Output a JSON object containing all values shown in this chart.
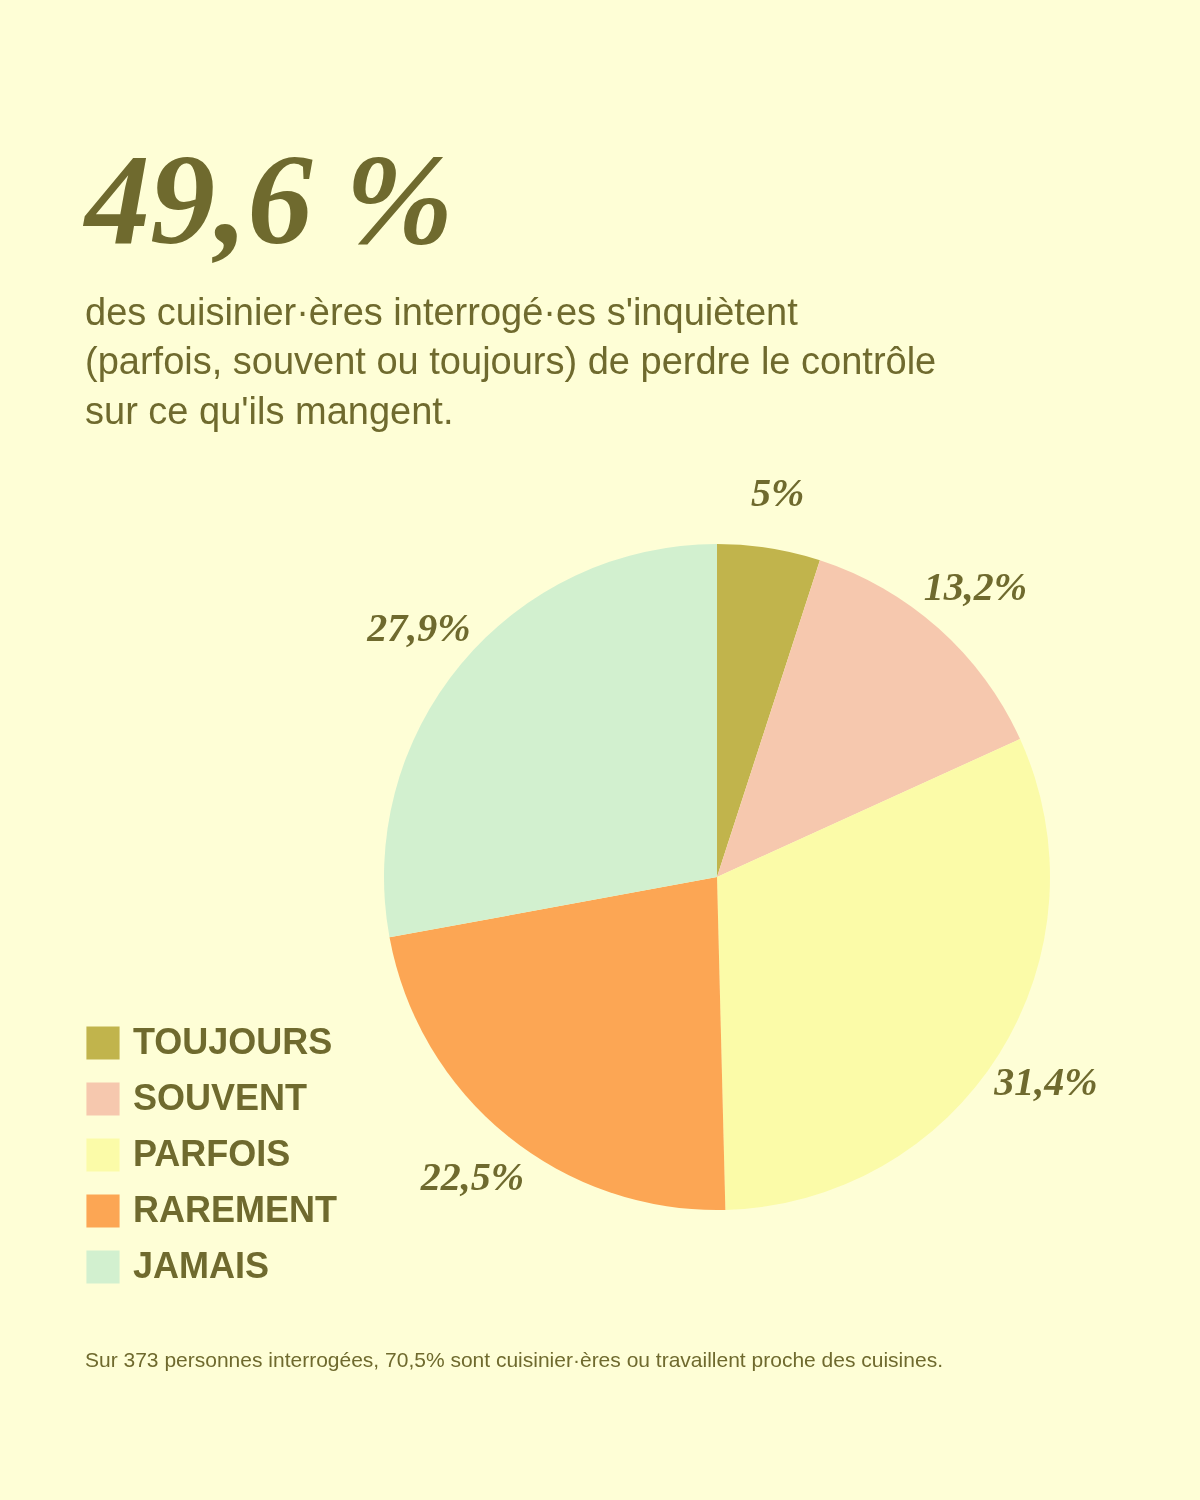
{
  "chart_data": {
    "type": "pie",
    "title": "49,6 %",
    "subtitle": "des cuisinier·ères interrogé·es s'inquiètent\n(parfois, souvent ou toujours) de perdre le contrôle\nsur ce qu'ils mangent.",
    "categories": [
      "TOUJOURS",
      "SOUVENT",
      "PARFOIS",
      "RAREMENT",
      "JAMAIS"
    ],
    "values": [
      5,
      13.2,
      31.4,
      22.5,
      27.9
    ],
    "colors": [
      "#c1b44c",
      "#f6c8ae",
      "#fbfba8",
      "#fca654",
      "#d2f0cf"
    ],
    "value_labels": [
      "5%",
      "13,2%",
      "31,4%",
      "22,5%",
      "27,9%"
    ],
    "legend": "bottom left",
    "annotations": [
      "Sur 373 personnes interrogées, 70,5% sont cuisinier·ères ou travaillent proche des cuisines."
    ]
  }
}
